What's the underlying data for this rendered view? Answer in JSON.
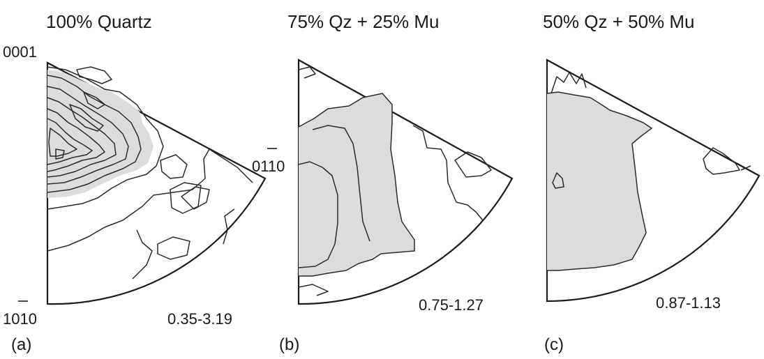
{
  "panels": [
    {
      "id": "a",
      "title": "100% Quartz",
      "range": "0.35-3.19",
      "letter": "(a)",
      "corner_top": "0001",
      "corner_right": "0110",
      "corner_bottom": "1010"
    },
    {
      "id": "b",
      "title": "75% Qz + 25% Mu",
      "range": "0.75-1.27",
      "letter": "(b)"
    },
    {
      "id": "c",
      "title": "50% Qz + 50% Mu",
      "range": "0.87-1.13",
      "letter": "(c)"
    }
  ],
  "colors": {
    "outline": "#1a1a1a",
    "shading": "#dcdcdc"
  }
}
